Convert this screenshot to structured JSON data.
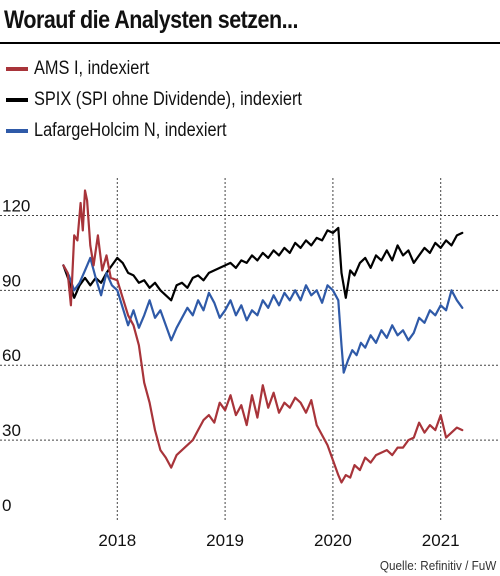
{
  "chart_data": {
    "type": "line",
    "title": "Worauf die Analysten setzen...",
    "ylim": [
      0,
      135
    ],
    "xlim": [
      2017.45,
      2021.55
    ],
    "yticks": [
      0,
      30,
      60,
      90,
      120
    ],
    "ytick_labels": [
      "0",
      "30",
      "60",
      "90",
      "120"
    ],
    "xticks": [
      2018,
      2019,
      2020,
      2021
    ],
    "xtick_labels": [
      "2018",
      "2019",
      "2020",
      "2021"
    ],
    "x_label_positions": [
      2018.0,
      2019.0,
      2020.0,
      2021.0
    ],
    "grid": "dotted-horizontal",
    "legend_position": "top-left",
    "source": "Quelle: Refinitiv / FuW",
    "series": [
      {
        "name": "AMS I, indexiert",
        "color": "#a8343a",
        "points": [
          [
            2017.5,
            100
          ],
          [
            2017.54,
            97
          ],
          [
            2017.57,
            84
          ],
          [
            2017.6,
            112
          ],
          [
            2017.63,
            110
          ],
          [
            2017.66,
            125
          ],
          [
            2017.68,
            114
          ],
          [
            2017.7,
            130
          ],
          [
            2017.72,
            126
          ],
          [
            2017.75,
            108
          ],
          [
            2017.78,
            100
          ],
          [
            2017.82,
            112
          ],
          [
            2017.86,
            98
          ],
          [
            2017.9,
            104
          ],
          [
            2017.94,
            95
          ],
          [
            2018.0,
            94
          ],
          [
            2018.05,
            87
          ],
          [
            2018.1,
            80
          ],
          [
            2018.15,
            76
          ],
          [
            2018.2,
            68
          ],
          [
            2018.25,
            53
          ],
          [
            2018.3,
            45
          ],
          [
            2018.35,
            34
          ],
          [
            2018.4,
            26
          ],
          [
            2018.45,
            23
          ],
          [
            2018.5,
            19
          ],
          [
            2018.55,
            24
          ],
          [
            2018.6,
            26
          ],
          [
            2018.65,
            28
          ],
          [
            2018.7,
            30
          ],
          [
            2018.75,
            34
          ],
          [
            2018.8,
            38
          ],
          [
            2018.85,
            40
          ],
          [
            2018.9,
            37
          ],
          [
            2018.95,
            45
          ],
          [
            2019.0,
            42
          ],
          [
            2019.05,
            48
          ],
          [
            2019.1,
            40
          ],
          [
            2019.15,
            44
          ],
          [
            2019.2,
            36
          ],
          [
            2019.25,
            48
          ],
          [
            2019.3,
            39
          ],
          [
            2019.35,
            52
          ],
          [
            2019.4,
            43
          ],
          [
            2019.45,
            49
          ],
          [
            2019.5,
            41
          ],
          [
            2019.55,
            45
          ],
          [
            2019.6,
            43
          ],
          [
            2019.65,
            47
          ],
          [
            2019.7,
            45
          ],
          [
            2019.75,
            41
          ],
          [
            2019.8,
            46
          ],
          [
            2019.85,
            36
          ],
          [
            2019.9,
            32
          ],
          [
            2019.95,
            28
          ],
          [
            2020.0,
            22
          ],
          [
            2020.05,
            16
          ],
          [
            2020.08,
            13
          ],
          [
            2020.12,
            16
          ],
          [
            2020.16,
            15
          ],
          [
            2020.2,
            20
          ],
          [
            2020.25,
            18
          ],
          [
            2020.3,
            23
          ],
          [
            2020.35,
            21
          ],
          [
            2020.4,
            24
          ],
          [
            2020.45,
            25
          ],
          [
            2020.5,
            26
          ],
          [
            2020.55,
            24
          ],
          [
            2020.6,
            27
          ],
          [
            2020.65,
            27
          ],
          [
            2020.7,
            30
          ],
          [
            2020.75,
            31
          ],
          [
            2020.8,
            37
          ],
          [
            2020.85,
            33
          ],
          [
            2020.9,
            36
          ],
          [
            2020.95,
            34
          ],
          [
            2021.0,
            40
          ],
          [
            2021.05,
            31
          ],
          [
            2021.1,
            33
          ],
          [
            2021.15,
            35
          ],
          [
            2021.2,
            34
          ]
        ]
      },
      {
        "name": "SPIX (SPI ohne Dividende), indexiert",
        "color": "#000000",
        "points": [
          [
            2017.5,
            100
          ],
          [
            2017.55,
            94
          ],
          [
            2017.6,
            87
          ],
          [
            2017.65,
            92
          ],
          [
            2017.7,
            95
          ],
          [
            2017.75,
            92
          ],
          [
            2017.8,
            95
          ],
          [
            2017.85,
            93
          ],
          [
            2017.9,
            97
          ],
          [
            2017.95,
            100
          ],
          [
            2018.0,
            103
          ],
          [
            2018.05,
            101
          ],
          [
            2018.1,
            97
          ],
          [
            2018.15,
            96
          ],
          [
            2018.2,
            93
          ],
          [
            2018.25,
            94
          ],
          [
            2018.3,
            91
          ],
          [
            2018.35,
            93
          ],
          [
            2018.4,
            90
          ],
          [
            2018.45,
            88
          ],
          [
            2018.5,
            86
          ],
          [
            2018.55,
            92
          ],
          [
            2018.6,
            93
          ],
          [
            2018.65,
            91
          ],
          [
            2018.7,
            95
          ],
          [
            2018.75,
            96
          ],
          [
            2018.8,
            94
          ],
          [
            2018.85,
            97
          ],
          [
            2018.9,
            98
          ],
          [
            2018.95,
            99
          ],
          [
            2019.0,
            100
          ],
          [
            2019.05,
            101
          ],
          [
            2019.1,
            99
          ],
          [
            2019.15,
            102
          ],
          [
            2019.2,
            101
          ],
          [
            2019.25,
            104
          ],
          [
            2019.3,
            102
          ],
          [
            2019.35,
            105
          ],
          [
            2019.4,
            103
          ],
          [
            2019.45,
            106
          ],
          [
            2019.5,
            104
          ],
          [
            2019.55,
            107
          ],
          [
            2019.6,
            105
          ],
          [
            2019.65,
            109
          ],
          [
            2019.7,
            107
          ],
          [
            2019.75,
            110
          ],
          [
            2019.8,
            108
          ],
          [
            2019.85,
            111
          ],
          [
            2019.9,
            110
          ],
          [
            2019.95,
            114
          ],
          [
            2020.0,
            113
          ],
          [
            2020.05,
            115
          ],
          [
            2020.08,
            97
          ],
          [
            2020.12,
            87
          ],
          [
            2020.16,
            98
          ],
          [
            2020.2,
            96
          ],
          [
            2020.25,
            101
          ],
          [
            2020.3,
            103
          ],
          [
            2020.35,
            99
          ],
          [
            2020.4,
            104
          ],
          [
            2020.45,
            102
          ],
          [
            2020.5,
            106
          ],
          [
            2020.55,
            102
          ],
          [
            2020.6,
            108
          ],
          [
            2020.65,
            104
          ],
          [
            2020.7,
            106
          ],
          [
            2020.75,
            101
          ],
          [
            2020.8,
            104
          ],
          [
            2020.85,
            107
          ],
          [
            2020.9,
            105
          ],
          [
            2020.95,
            109
          ],
          [
            2021.0,
            107
          ],
          [
            2021.05,
            110
          ],
          [
            2021.1,
            108
          ],
          [
            2021.15,
            112
          ],
          [
            2021.2,
            113
          ]
        ]
      },
      {
        "name": "LafargeHolcim N, indexiert",
        "color": "#2f5aa8",
        "points": [
          [
            2017.5,
            100
          ],
          [
            2017.55,
            96
          ],
          [
            2017.6,
            90
          ],
          [
            2017.65,
            93
          ],
          [
            2017.7,
            98
          ],
          [
            2017.75,
            103
          ],
          [
            2017.8,
            95
          ],
          [
            2017.85,
            88
          ],
          [
            2017.9,
            97
          ],
          [
            2017.95,
            92
          ],
          [
            2018.0,
            90
          ],
          [
            2018.05,
            83
          ],
          [
            2018.1,
            76
          ],
          [
            2018.15,
            82
          ],
          [
            2018.2,
            75
          ],
          [
            2018.25,
            80
          ],
          [
            2018.3,
            86
          ],
          [
            2018.35,
            79
          ],
          [
            2018.4,
            82
          ],
          [
            2018.45,
            76
          ],
          [
            2018.5,
            70
          ],
          [
            2018.55,
            75
          ],
          [
            2018.6,
            79
          ],
          [
            2018.65,
            83
          ],
          [
            2018.7,
            80
          ],
          [
            2018.75,
            86
          ],
          [
            2018.8,
            82
          ],
          [
            2018.85,
            89
          ],
          [
            2018.9,
            85
          ],
          [
            2018.95,
            79
          ],
          [
            2019.0,
            82
          ],
          [
            2019.05,
            86
          ],
          [
            2019.1,
            80
          ],
          [
            2019.15,
            84
          ],
          [
            2019.2,
            78
          ],
          [
            2019.25,
            82
          ],
          [
            2019.3,
            80
          ],
          [
            2019.35,
            86
          ],
          [
            2019.4,
            83
          ],
          [
            2019.45,
            88
          ],
          [
            2019.5,
            84
          ],
          [
            2019.55,
            89
          ],
          [
            2019.6,
            86
          ],
          [
            2019.65,
            90
          ],
          [
            2019.7,
            86
          ],
          [
            2019.75,
            92
          ],
          [
            2019.8,
            88
          ],
          [
            2019.85,
            90
          ],
          [
            2019.9,
            85
          ],
          [
            2019.95,
            92
          ],
          [
            2020.0,
            90
          ],
          [
            2020.05,
            86
          ],
          [
            2020.08,
            68
          ],
          [
            2020.1,
            57
          ],
          [
            2020.14,
            62
          ],
          [
            2020.18,
            66
          ],
          [
            2020.22,
            64
          ],
          [
            2020.26,
            69
          ],
          [
            2020.3,
            67
          ],
          [
            2020.35,
            72
          ],
          [
            2020.4,
            69
          ],
          [
            2020.45,
            74
          ],
          [
            2020.5,
            71
          ],
          [
            2020.55,
            76
          ],
          [
            2020.6,
            72
          ],
          [
            2020.65,
            74
          ],
          [
            2020.7,
            70
          ],
          [
            2020.75,
            73
          ],
          [
            2020.8,
            79
          ],
          [
            2020.85,
            77
          ],
          [
            2020.9,
            82
          ],
          [
            2020.95,
            80
          ],
          [
            2021.0,
            84
          ],
          [
            2021.05,
            82
          ],
          [
            2021.1,
            90
          ],
          [
            2021.15,
            86
          ],
          [
            2021.2,
            83
          ]
        ]
      }
    ]
  },
  "colors": {
    "ams": "#a8343a",
    "spix": "#000000",
    "holcim": "#2f5aa8",
    "grid": "#444444"
  }
}
